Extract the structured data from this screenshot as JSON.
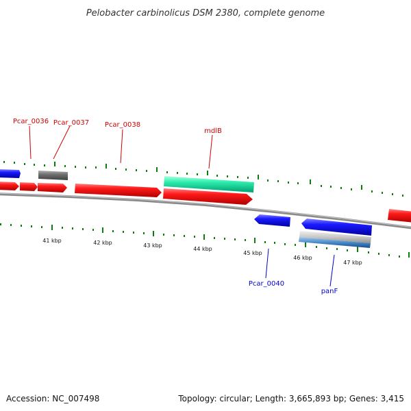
{
  "title": "Pelobacter carbinolicus DSM 2380, complete genome",
  "footer": {
    "accession": "Accession: NC_007498",
    "summary": "Topology: circular; Length: 3,665,893 bp; Genes: 3,415"
  },
  "colors": {
    "forward_cds": "#e60000",
    "reverse_cds": "#0000e0",
    "rna": "#00e0a0",
    "other": "#707070",
    "label_forward": "#cc0000",
    "label_reverse": "#0000cc",
    "tick": "#0a7d0a",
    "backbone": "#888888"
  },
  "ticks": [
    "41 kbp",
    "42 kbp",
    "43 kbp",
    "44 kbp",
    "45 kbp",
    "46 kbp",
    "47 kbp"
  ],
  "gene_labels": {
    "pcar_0036": "Pcar_0036",
    "pcar_0037": "Pcar_0037",
    "pcar_0038": "Pcar_0038",
    "mdlb": "mdlB",
    "pcar_0040": "Pcar_0040",
    "panf": "panF"
  }
}
